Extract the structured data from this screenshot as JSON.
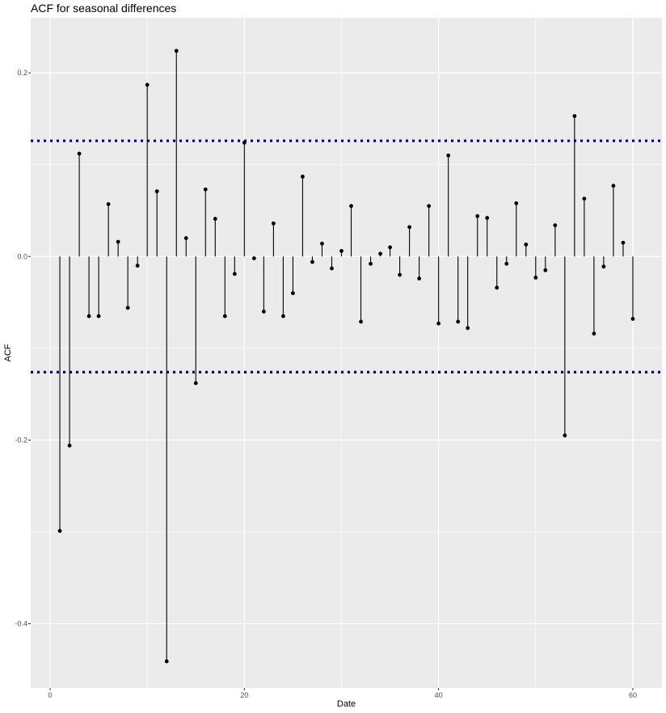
{
  "chart_data": {
    "type": "scatter",
    "subtype": "lollipop",
    "title": "ACF for seasonal differences",
    "xlabel": "Date",
    "ylabel": "ACF",
    "xlim": [
      -2,
      63
    ],
    "ylim": [
      -0.47,
      0.26
    ],
    "xticks": [
      0,
      20,
      40,
      60
    ],
    "yticks": [
      -0.4,
      -0.2,
      0.0,
      0.2
    ],
    "ytick_labels": [
      "-0.4",
      "-0.2",
      "0.0",
      "0.2"
    ],
    "x": [
      1,
      2,
      3,
      4,
      5,
      6,
      7,
      8,
      9,
      10,
      11,
      12,
      13,
      14,
      15,
      16,
      17,
      18,
      19,
      20,
      21,
      22,
      23,
      24,
      25,
      26,
      27,
      28,
      29,
      30,
      31,
      32,
      33,
      34,
      35,
      36,
      37,
      38,
      39,
      40,
      41,
      42,
      43,
      44,
      45,
      46,
      47,
      48,
      49,
      50,
      51,
      52,
      53,
      54,
      55,
      56,
      57,
      58,
      59,
      60
    ],
    "y": [
      -0.299,
      -0.206,
      0.112,
      -0.065,
      -0.065,
      0.057,
      0.016,
      -0.056,
      -0.01,
      0.187,
      0.071,
      -0.441,
      0.224,
      0.02,
      -0.138,
      0.073,
      0.041,
      -0.065,
      -0.019,
      0.124,
      -0.002,
      -0.06,
      0.036,
      -0.065,
      -0.04,
      0.087,
      -0.006,
      0.014,
      -0.013,
      0.006,
      0.055,
      -0.071,
      -0.008,
      0.003,
      0.01,
      -0.02,
      0.032,
      -0.024,
      0.055,
      -0.073,
      0.11,
      -0.071,
      -0.078,
      0.044,
      0.042,
      -0.034,
      -0.008,
      0.058,
      0.013,
      -0.023,
      -0.015,
      0.034,
      -0.195,
      0.153,
      0.063,
      -0.084,
      -0.011,
      0.077,
      0.015,
      -0.068
    ],
    "confidence_bounds": [
      0.126,
      -0.126
    ],
    "colors": {
      "panel": "#ebebeb",
      "grid": "#ffffff",
      "points": "#000000",
      "bounds": "#00007f"
    },
    "grid": true,
    "legend": "none"
  }
}
